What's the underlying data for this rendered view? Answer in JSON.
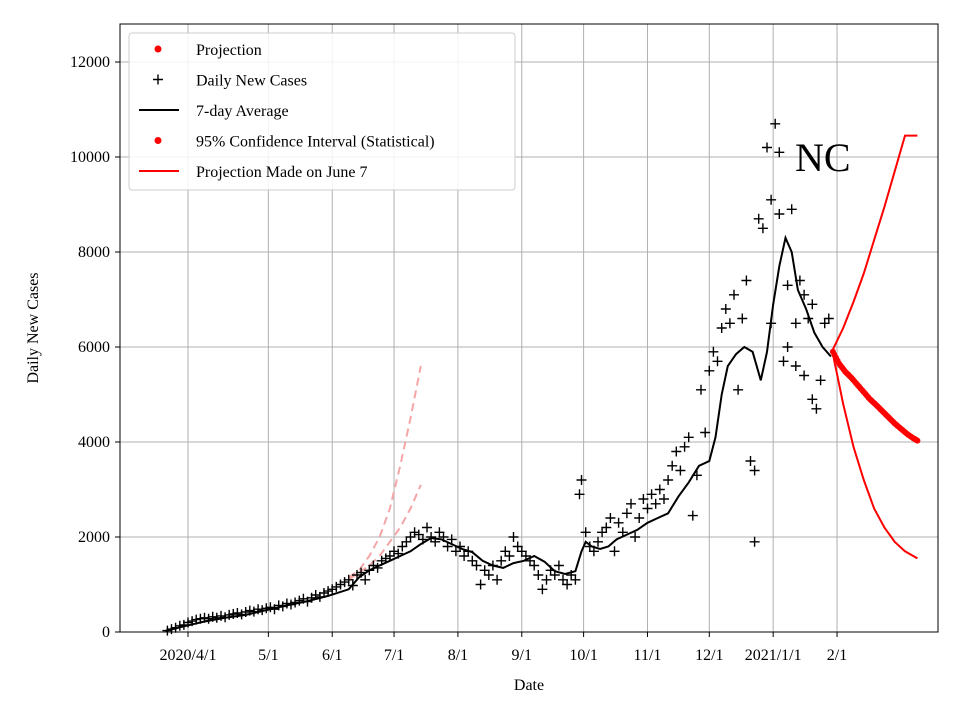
{
  "chart_data": {
    "type": "scatter",
    "state": "NC",
    "xlabel": "Date",
    "ylabel": "Daily New Cases",
    "x_unit": "days since 2020-03-01",
    "xlim": [
      -11,
      386
    ],
    "ylim": [
      0,
      12800
    ],
    "grid": true,
    "legend_position": "top-left",
    "colors": {
      "black": "#000000",
      "red": "#ff0000",
      "pink": "#f4a6a6",
      "grid": "#b0b0b0"
    },
    "x_ticks": [
      {
        "day": 22,
        "label": "2020/4/1"
      },
      {
        "day": 61,
        "label": "5/1"
      },
      {
        "day": 92,
        "label": "6/1"
      },
      {
        "day": 122,
        "label": "7/1"
      },
      {
        "day": 153,
        "label": "8/1"
      },
      {
        "day": 184,
        "label": "9/1"
      },
      {
        "day": 214,
        "label": "10/1"
      },
      {
        "day": 245,
        "label": "11/1"
      },
      {
        "day": 275,
        "label": "12/1"
      },
      {
        "day": 306,
        "label": "2021/1/1"
      },
      {
        "day": 337,
        "label": "2/1"
      }
    ],
    "y_ticks": [
      0,
      2000,
      4000,
      6000,
      8000,
      10000,
      12000
    ],
    "legend": [
      {
        "label": "Projection",
        "marker": "dot",
        "color": "#ff0000"
      },
      {
        "label": "Daily New Cases",
        "marker": "plus",
        "color": "#000000"
      },
      {
        "label": "7-day Average",
        "marker": "line",
        "color": "#000000"
      },
      {
        "label": "95% Confidence Interval (Statistical)",
        "marker": "dot",
        "color": "#ff0000"
      },
      {
        "label": "Projection Made on June 7",
        "marker": "line",
        "color": "#ff0000"
      }
    ],
    "seven_day_average": [
      [
        11,
        20
      ],
      [
        20,
        120
      ],
      [
        30,
        220
      ],
      [
        40,
        300
      ],
      [
        50,
        360
      ],
      [
        60,
        460
      ],
      [
        70,
        560
      ],
      [
        80,
        650
      ],
      [
        90,
        760
      ],
      [
        100,
        900
      ],
      [
        105,
        1150
      ],
      [
        110,
        1300
      ],
      [
        115,
        1400
      ],
      [
        120,
        1500
      ],
      [
        125,
        1600
      ],
      [
        130,
        1700
      ],
      [
        135,
        1850
      ],
      [
        140,
        1980
      ],
      [
        145,
        1950
      ],
      [
        150,
        1850
      ],
      [
        155,
        1750
      ],
      [
        160,
        1680
      ],
      [
        165,
        1500
      ],
      [
        170,
        1400
      ],
      [
        175,
        1350
      ],
      [
        180,
        1450
      ],
      [
        185,
        1500
      ],
      [
        190,
        1600
      ],
      [
        195,
        1480
      ],
      [
        200,
        1280
      ],
      [
        205,
        1220
      ],
      [
        210,
        1280
      ],
      [
        213,
        1700
      ],
      [
        215,
        1900
      ],
      [
        218,
        1800
      ],
      [
        222,
        1750
      ],
      [
        226,
        1800
      ],
      [
        230,
        1950
      ],
      [
        235,
        2050
      ],
      [
        240,
        2150
      ],
      [
        245,
        2300
      ],
      [
        250,
        2400
      ],
      [
        255,
        2500
      ],
      [
        260,
        2850
      ],
      [
        265,
        3150
      ],
      [
        270,
        3500
      ],
      [
        275,
        3600
      ],
      [
        278,
        4100
      ],
      [
        281,
        5000
      ],
      [
        284,
        5600
      ],
      [
        288,
        5850
      ],
      [
        292,
        6000
      ],
      [
        296,
        5900
      ],
      [
        300,
        5300
      ],
      [
        303,
        5900
      ],
      [
        306,
        6900
      ],
      [
        309,
        7700
      ],
      [
        312,
        8300
      ],
      [
        315,
        8000
      ],
      [
        318,
        7200
      ],
      [
        322,
        6800
      ],
      [
        326,
        6300
      ],
      [
        330,
        6000
      ],
      [
        334,
        5800
      ]
    ],
    "daily_new_cases": [
      [
        12,
        30
      ],
      [
        14,
        60
      ],
      [
        16,
        90
      ],
      [
        18,
        130
      ],
      [
        20,
        150
      ],
      [
        22,
        200
      ],
      [
        24,
        230
      ],
      [
        26,
        260
      ],
      [
        28,
        280
      ],
      [
        30,
        300
      ],
      [
        32,
        280
      ],
      [
        34,
        320
      ],
      [
        36,
        300
      ],
      [
        38,
        340
      ],
      [
        40,
        310
      ],
      [
        42,
        360
      ],
      [
        44,
        380
      ],
      [
        46,
        400
      ],
      [
        48,
        370
      ],
      [
        50,
        420
      ],
      [
        52,
        450
      ],
      [
        54,
        430
      ],
      [
        56,
        480
      ],
      [
        58,
        460
      ],
      [
        60,
        500
      ],
      [
        62,
        520
      ],
      [
        64,
        480
      ],
      [
        66,
        560
      ],
      [
        68,
        540
      ],
      [
        70,
        600
      ],
      [
        72,
        580
      ],
      [
        74,
        620
      ],
      [
        76,
        660
      ],
      [
        78,
        700
      ],
      [
        80,
        640
      ],
      [
        82,
        720
      ],
      [
        84,
        780
      ],
      [
        86,
        740
      ],
      [
        88,
        820
      ],
      [
        90,
        860
      ],
      [
        92,
        900
      ],
      [
        94,
        950
      ],
      [
        96,
        1000
      ],
      [
        98,
        1050
      ],
      [
        100,
        1100
      ],
      [
        102,
        980
      ],
      [
        104,
        1200
      ],
      [
        106,
        1250
      ],
      [
        108,
        1100
      ],
      [
        110,
        1300
      ],
      [
        112,
        1400
      ],
      [
        114,
        1350
      ],
      [
        116,
        1500
      ],
      [
        118,
        1550
      ],
      [
        120,
        1600
      ],
      [
        122,
        1700
      ],
      [
        124,
        1650
      ],
      [
        126,
        1800
      ],
      [
        128,
        1900
      ],
      [
        130,
        2000
      ],
      [
        132,
        2100
      ],
      [
        134,
        2050
      ],
      [
        136,
        1950
      ],
      [
        138,
        2200
      ],
      [
        140,
        2000
      ],
      [
        142,
        1900
      ],
      [
        144,
        2100
      ],
      [
        146,
        2000
      ],
      [
        148,
        1800
      ],
      [
        150,
        1950
      ],
      [
        152,
        1700
      ],
      [
        154,
        1800
      ],
      [
        156,
        1600
      ],
      [
        158,
        1700
      ],
      [
        160,
        1500
      ],
      [
        162,
        1400
      ],
      [
        164,
        1000
      ],
      [
        166,
        1300
      ],
      [
        168,
        1200
      ],
      [
        170,
        1400
      ],
      [
        172,
        1100
      ],
      [
        174,
        1500
      ],
      [
        176,
        1700
      ],
      [
        178,
        1600
      ],
      [
        180,
        2000
      ],
      [
        182,
        1800
      ],
      [
        184,
        1700
      ],
      [
        186,
        1600
      ],
      [
        188,
        1500
      ],
      [
        190,
        1400
      ],
      [
        192,
        1200
      ],
      [
        194,
        900
      ],
      [
        196,
        1100
      ],
      [
        198,
        1300
      ],
      [
        200,
        1200
      ],
      [
        202,
        1400
      ],
      [
        204,
        1100
      ],
      [
        206,
        1000
      ],
      [
        208,
        1200
      ],
      [
        210,
        1100
      ],
      [
        212,
        2900
      ],
      [
        213,
        3200
      ],
      [
        215,
        2100
      ],
      [
        217,
        1800
      ],
      [
        219,
        1700
      ],
      [
        221,
        1900
      ],
      [
        223,
        2100
      ],
      [
        225,
        2200
      ],
      [
        227,
        2400
      ],
      [
        229,
        1700
      ],
      [
        231,
        2300
      ],
      [
        233,
        2100
      ],
      [
        235,
        2500
      ],
      [
        237,
        2700
      ],
      [
        239,
        2000
      ],
      [
        241,
        2400
      ],
      [
        243,
        2800
      ],
      [
        245,
        2600
      ],
      [
        247,
        2900
      ],
      [
        249,
        2700
      ],
      [
        251,
        3000
      ],
      [
        253,
        2800
      ],
      [
        255,
        3200
      ],
      [
        257,
        3500
      ],
      [
        259,
        3800
      ],
      [
        261,
        3400
      ],
      [
        263,
        3900
      ],
      [
        265,
        4100
      ],
      [
        267,
        2450
      ],
      [
        269,
        3300
      ],
      [
        271,
        5100
      ],
      [
        273,
        4200
      ],
      [
        275,
        5500
      ],
      [
        277,
        5900
      ],
      [
        279,
        5700
      ],
      [
        281,
        6400
      ],
      [
        283,
        6800
      ],
      [
        285,
        6500
      ],
      [
        287,
        7100
      ],
      [
        289,
        5100
      ],
      [
        291,
        6600
      ],
      [
        293,
        7400
      ],
      [
        295,
        3600
      ],
      [
        297,
        3400
      ],
      [
        299,
        8700
      ],
      [
        301,
        8500
      ],
      [
        303,
        10200
      ],
      [
        305,
        9100
      ],
      [
        307,
        10700
      ],
      [
        309,
        8800
      ],
      [
        311,
        5700
      ],
      [
        313,
        7300
      ],
      [
        315,
        8900
      ],
      [
        317,
        6500
      ],
      [
        319,
        7400
      ],
      [
        321,
        7100
      ],
      [
        323,
        6600
      ],
      [
        325,
        4900
      ],
      [
        327,
        4700
      ],
      [
        329,
        5300
      ],
      [
        331,
        6500
      ],
      [
        333,
        6600
      ],
      [
        297,
        1900
      ],
      [
        305,
        6500
      ],
      [
        309,
        10100
      ],
      [
        313,
        6000
      ],
      [
        317,
        5600
      ],
      [
        321,
        5400
      ],
      [
        325,
        6900
      ]
    ],
    "projection": [
      [
        335,
        5900
      ],
      [
        338,
        5650
      ],
      [
        341,
        5480
      ],
      [
        344,
        5350
      ],
      [
        347,
        5200
      ],
      [
        350,
        5050
      ],
      [
        353,
        4900
      ],
      [
        356,
        4780
      ],
      [
        359,
        4650
      ],
      [
        362,
        4520
      ],
      [
        365,
        4390
      ],
      [
        368,
        4280
      ],
      [
        371,
        4170
      ],
      [
        374,
        4080
      ],
      [
        376,
        4030
      ]
    ],
    "ci_upper": [
      [
        335,
        5950
      ],
      [
        340,
        6400
      ],
      [
        345,
        6950
      ],
      [
        350,
        7550
      ],
      [
        355,
        8250
      ],
      [
        360,
        8950
      ],
      [
        365,
        9700
      ],
      [
        370,
        10450
      ],
      [
        376,
        10450
      ]
    ],
    "ci_lower": [
      [
        335,
        5850
      ],
      [
        340,
        4800
      ],
      [
        345,
        3900
      ],
      [
        350,
        3200
      ],
      [
        355,
        2600
      ],
      [
        360,
        2200
      ],
      [
        365,
        1900
      ],
      [
        370,
        1700
      ],
      [
        376,
        1550
      ]
    ],
    "june7_projection": [
      {
        "name": "upper",
        "points": [
          [
            100,
            1150
          ],
          [
            105,
            1300
          ],
          [
            110,
            1600
          ],
          [
            115,
            2000
          ],
          [
            120,
            2600
          ],
          [
            125,
            3500
          ],
          [
            130,
            4500
          ],
          [
            135,
            5600
          ]
        ]
      },
      {
        "name": "lower",
        "points": [
          [
            100,
            1100
          ],
          [
            105,
            1250
          ],
          [
            110,
            1400
          ],
          [
            115,
            1600
          ],
          [
            120,
            1900
          ],
          [
            125,
            2200
          ],
          [
            130,
            2600
          ],
          [
            135,
            3100
          ]
        ]
      }
    ]
  }
}
